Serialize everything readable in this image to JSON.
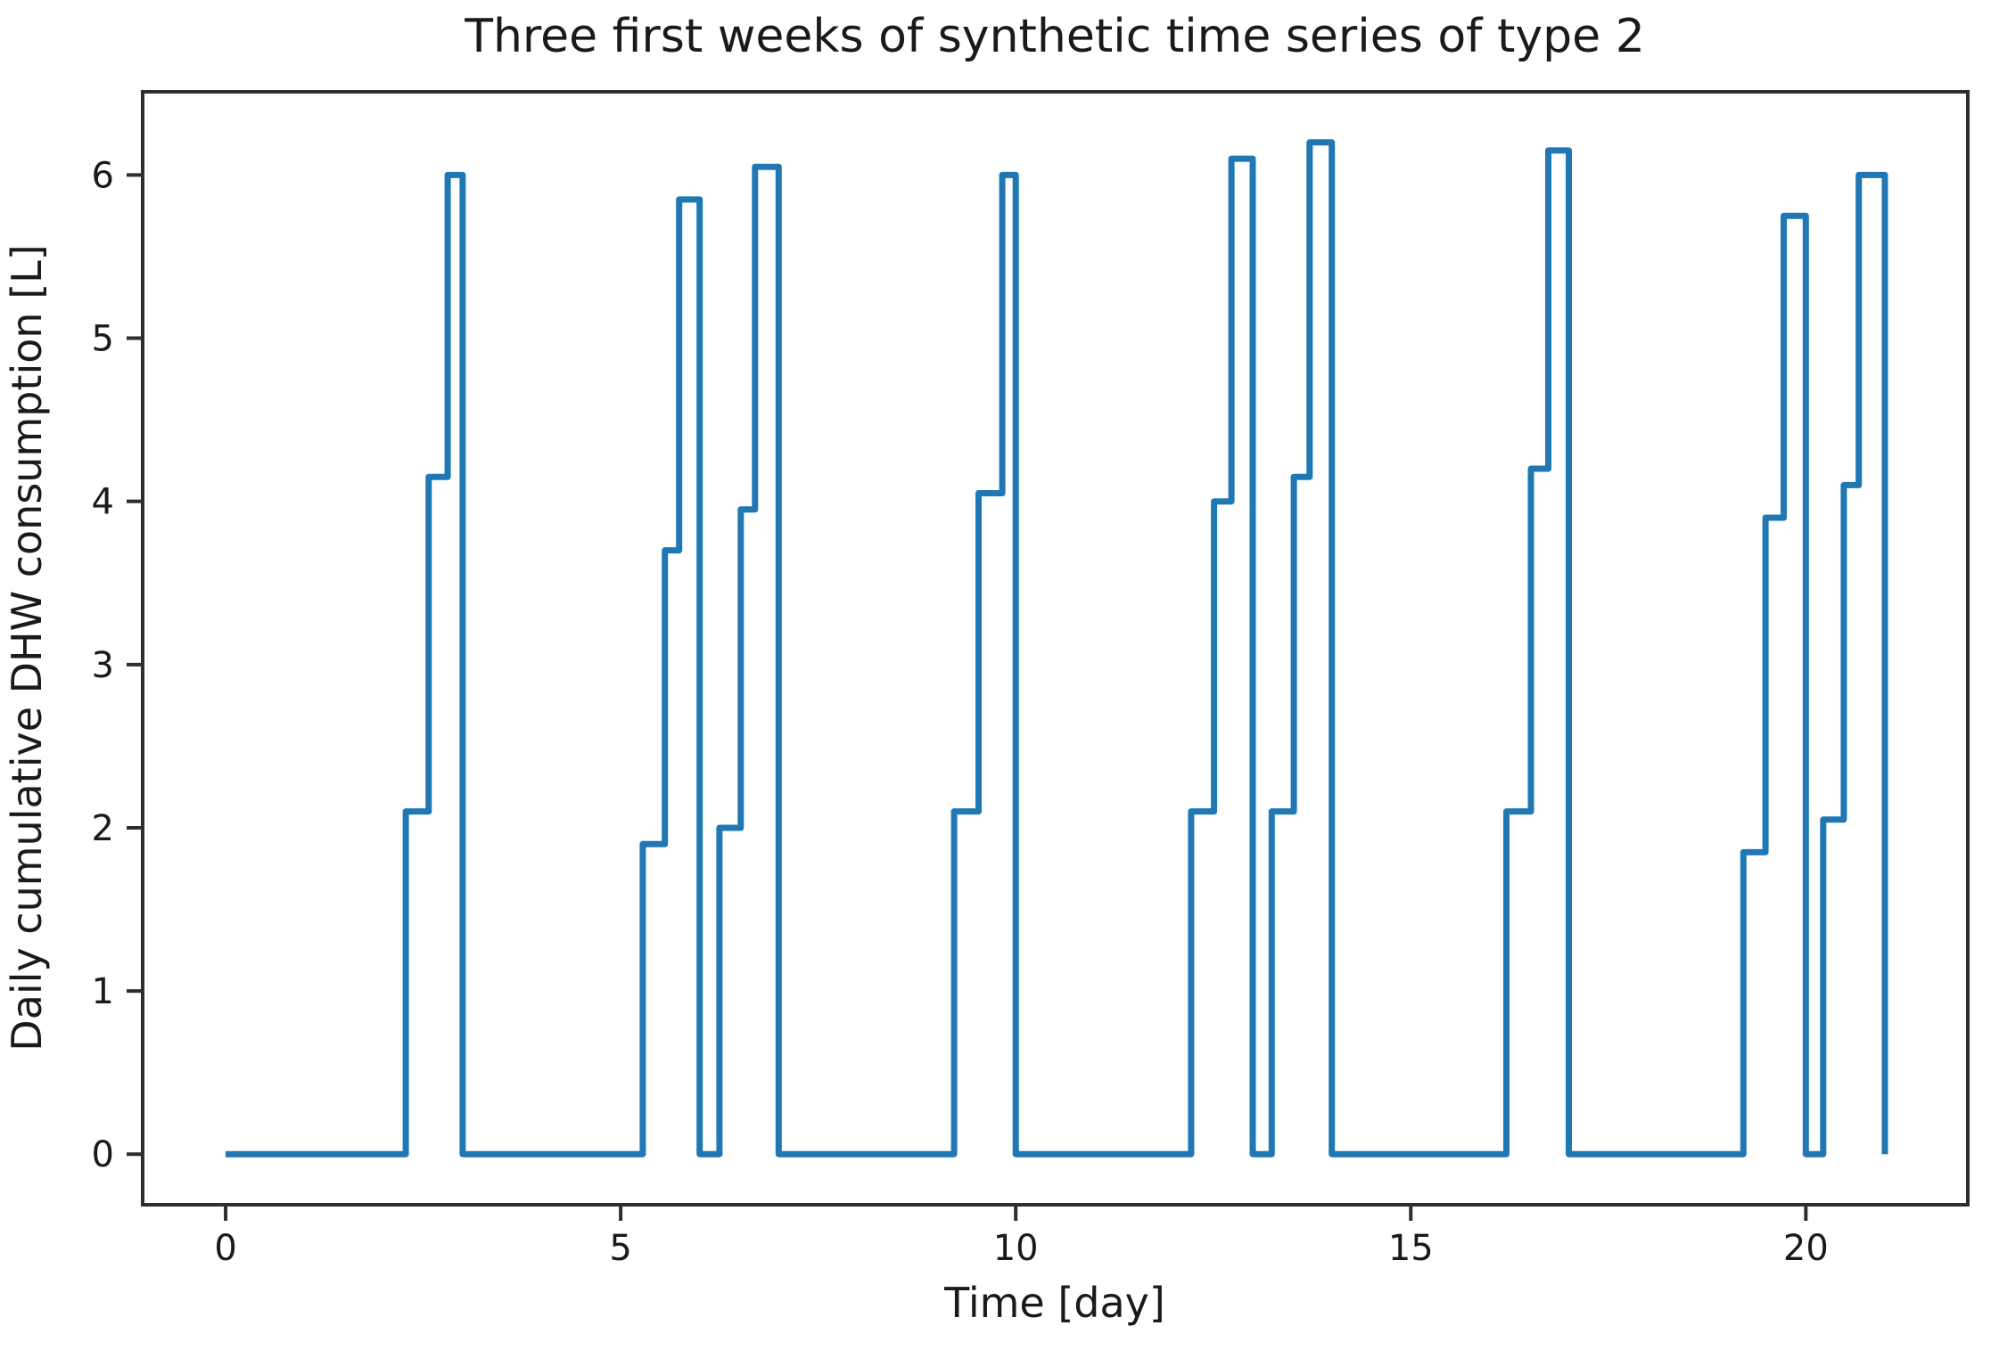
{
  "chart_data": {
    "type": "line",
    "title": "Three first weeks of synthetic time series of type 2",
    "xlabel": "Time [day]",
    "ylabel": "Daily cumulative DHW consumption [L]",
    "grid": false,
    "legend": null,
    "line_color": "#1f77b4",
    "spine_color": "#2e2e2e",
    "text_color": "#1a1a1a",
    "background_color": "#ffffff",
    "xlim": [
      -1.05,
      22.05
    ],
    "ylim": [
      -0.31,
      6.51
    ],
    "x_ticks": [
      0,
      5,
      10,
      15,
      20
    ],
    "y_ticks": [
      0,
      1,
      2,
      3,
      4,
      5,
      6
    ],
    "series_name": "Daily cumulative DHW consumption",
    "points": [
      [
        0,
        0
      ],
      [
        2.28,
        0
      ],
      [
        2.28,
        2.1
      ],
      [
        2.57,
        2.1
      ],
      [
        2.57,
        4.15
      ],
      [
        2.81,
        4.15
      ],
      [
        2.81,
        6.0
      ],
      [
        3.0,
        6.0
      ],
      [
        3.0,
        0
      ],
      [
        5.28,
        0
      ],
      [
        5.28,
        1.9
      ],
      [
        5.56,
        1.9
      ],
      [
        5.56,
        3.7
      ],
      [
        5.74,
        3.7
      ],
      [
        5.74,
        5.85
      ],
      [
        6.0,
        5.85
      ],
      [
        6.0,
        0
      ],
      [
        6.25,
        0
      ],
      [
        6.25,
        2.0
      ],
      [
        6.52,
        2.0
      ],
      [
        6.52,
        3.95
      ],
      [
        6.7,
        3.95
      ],
      [
        6.7,
        6.05
      ],
      [
        7.0,
        6.05
      ],
      [
        7.0,
        0
      ],
      [
        9.22,
        0
      ],
      [
        9.22,
        2.1
      ],
      [
        9.53,
        2.1
      ],
      [
        9.53,
        4.05
      ],
      [
        9.83,
        4.05
      ],
      [
        9.83,
        6.0
      ],
      [
        10.0,
        6.0
      ],
      [
        10.0,
        0
      ],
      [
        12.22,
        0
      ],
      [
        12.22,
        2.1
      ],
      [
        12.51,
        2.1
      ],
      [
        12.51,
        4.0
      ],
      [
        12.73,
        4.0
      ],
      [
        12.73,
        6.1
      ],
      [
        13.0,
        6.1
      ],
      [
        13.0,
        0
      ],
      [
        13.24,
        0
      ],
      [
        13.24,
        2.1
      ],
      [
        13.52,
        2.1
      ],
      [
        13.52,
        4.15
      ],
      [
        13.72,
        4.15
      ],
      [
        13.72,
        6.2
      ],
      [
        14.0,
        6.2
      ],
      [
        14.0,
        0
      ],
      [
        16.21,
        0
      ],
      [
        16.21,
        2.1
      ],
      [
        16.52,
        2.1
      ],
      [
        16.52,
        4.2
      ],
      [
        16.74,
        4.2
      ],
      [
        16.74,
        6.15
      ],
      [
        17.0,
        6.15
      ],
      [
        17.0,
        0
      ],
      [
        19.21,
        0
      ],
      [
        19.21,
        1.85
      ],
      [
        19.49,
        1.85
      ],
      [
        19.49,
        3.9
      ],
      [
        19.72,
        3.9
      ],
      [
        19.72,
        5.75
      ],
      [
        20.0,
        5.75
      ],
      [
        20.0,
        0
      ],
      [
        20.22,
        0
      ],
      [
        20.22,
        2.05
      ],
      [
        20.48,
        2.05
      ],
      [
        20.48,
        4.1
      ],
      [
        20.67,
        4.1
      ],
      [
        20.67,
        6.0
      ],
      [
        21.0,
        6.0
      ],
      [
        21.0,
        0
      ]
    ]
  }
}
